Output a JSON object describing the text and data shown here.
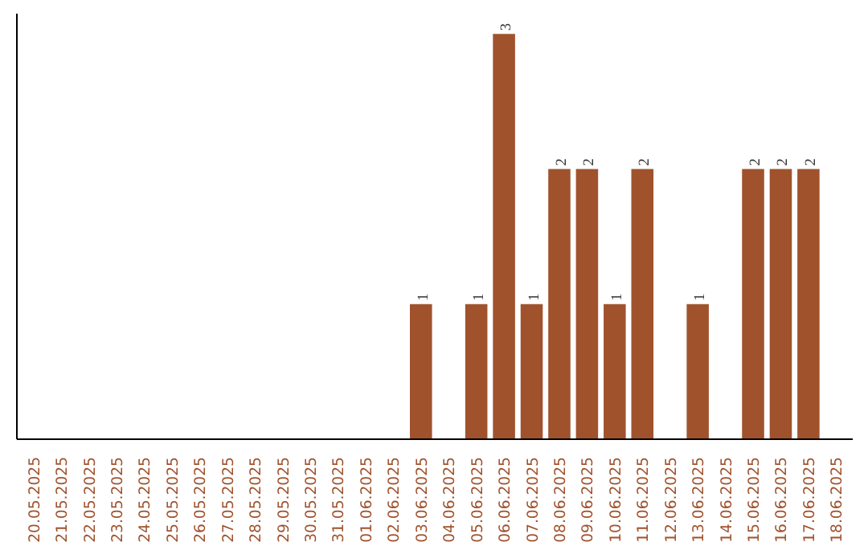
{
  "chart_data": {
    "type": "bar",
    "categories": [
      "20.05.2025",
      "21.05.2025",
      "22.05.2025",
      "23.05.2025",
      "24.05.2025",
      "25.05.2025",
      "26.05.2025",
      "27.05.2025",
      "28.05.2025",
      "29.05.2025",
      "30.05.2025",
      "31.05.2025",
      "01.06.2025",
      "02.06.2025",
      "03.06.2025",
      "04.06.2025",
      "05.06.2025",
      "06.06.2025",
      "07.06.2025",
      "08.06.2025",
      "09.06.2025",
      "10.06.2025",
      "11.06.2025",
      "12.06.2025",
      "13.06.2025",
      "14.06.2025",
      "15.06.2025",
      "16.06.2025",
      "17.06.2025",
      "18.06.2025"
    ],
    "values": [
      null,
      null,
      null,
      null,
      null,
      null,
      null,
      null,
      null,
      null,
      null,
      null,
      null,
      null,
      1,
      null,
      1,
      3,
      1,
      2,
      2,
      1,
      2,
      null,
      1,
      null,
      2,
      2,
      2,
      null
    ],
    "data_labels": true,
    "color": "#a0522d",
    "grid": false
  }
}
